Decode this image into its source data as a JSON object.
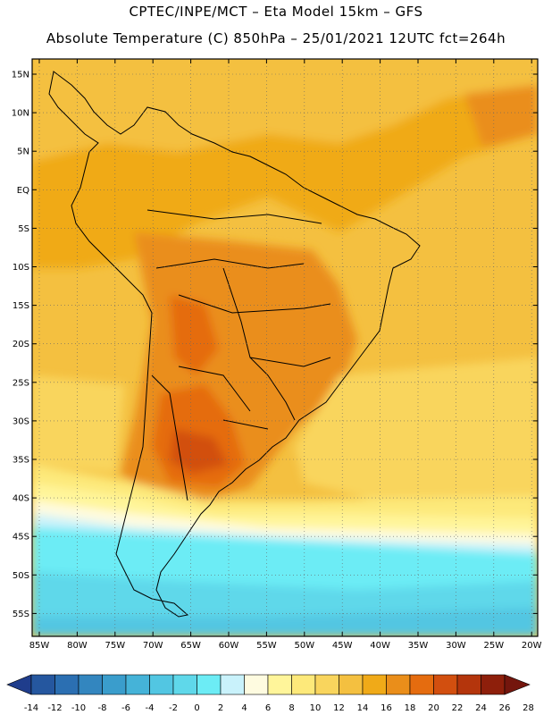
{
  "header": {
    "line1": "CPTEC/INPE/MCT –  Eta Model 15km – GFS",
    "line2": "Absolute Temperature (C) 850hPa – 25/01/2021 12UTC fct=264h"
  },
  "map": {
    "lat_labels": [
      "15N",
      "10N",
      "5N",
      "EQ",
      "5S",
      "10S",
      "15S",
      "20S",
      "25S",
      "30S",
      "35S",
      "40S",
      "45S",
      "50S",
      "55S"
    ],
    "lon_labels": [
      "85W",
      "80W",
      "75W",
      "70W",
      "65W",
      "60W",
      "55W",
      "50W",
      "45W",
      "40W",
      "35W",
      "30W",
      "25W",
      "20W"
    ]
  },
  "colorbar": {
    "labels": [
      "-14",
      "-12",
      "-10",
      "-8",
      "-6",
      "-4",
      "-2",
      "0",
      "2",
      "4",
      "6",
      "8",
      "10",
      "12",
      "14",
      "16",
      "18",
      "20",
      "22",
      "24",
      "26",
      "28"
    ],
    "colors": [
      "#1f3d8c",
      "#25579f",
      "#2b6fb2",
      "#3386bf",
      "#3a9dcc",
      "#45b3d8",
      "#52c6e2",
      "#5fd8ea",
      "#6cecf5",
      "#c9f2fb",
      "#fefbe0",
      "#fff59a",
      "#fde97a",
      "#f9d55d",
      "#f4c040",
      "#f0aa18",
      "#ea8e1a",
      "#e56c0f",
      "#d24f0f",
      "#b4350c",
      "#8e1f0b",
      "#74160d"
    ]
  }
}
